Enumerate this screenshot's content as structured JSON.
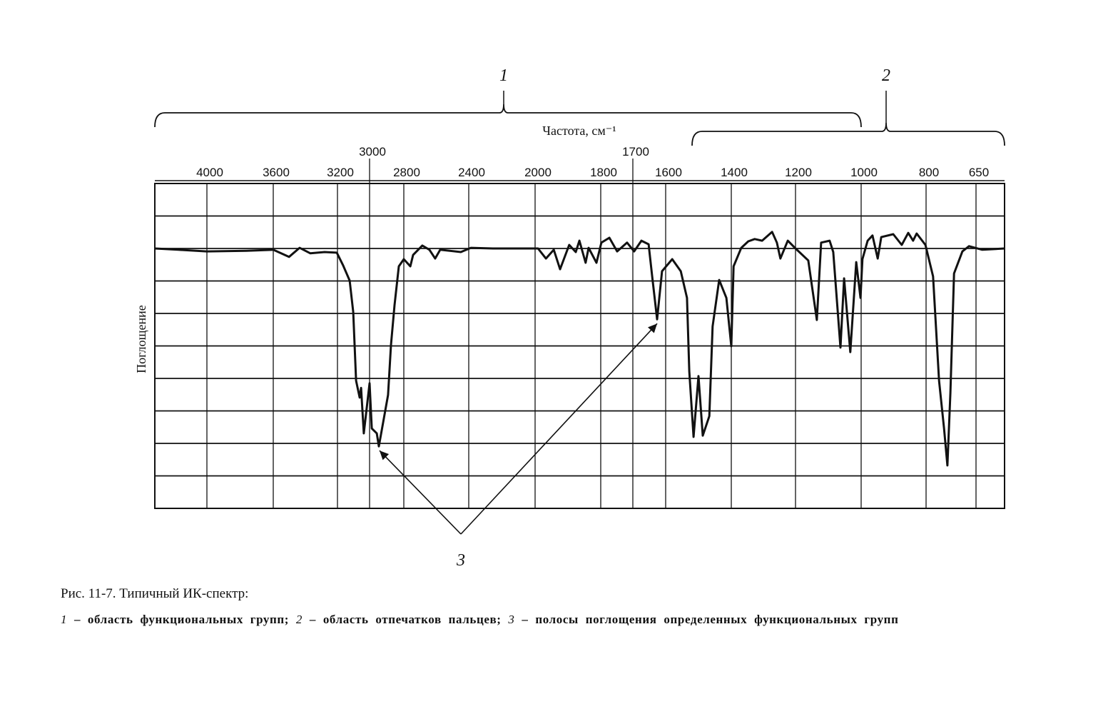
{
  "chart_data": {
    "type": "line",
    "title": "Рис. 11-7. Типичный ИК-спектр:",
    "xlabel": "Частота, см⁻¹",
    "ylabel": "Поглощение",
    "x_ticks": [
      4000,
      3600,
      3200,
      3000,
      2800,
      2400,
      2000,
      1800,
      1700,
      1600,
      1400,
      1200,
      1000,
      800,
      650
    ],
    "x_ticks_raised": [
      3000,
      1700
    ],
    "xlim": [
      4314,
      564
    ],
    "ylim": [
      0,
      100
    ],
    "y_gridlines": 10,
    "grid": true,
    "y_units": "relative transmittance (absorption downward), unlabeled axis",
    "series": [
      {
        "name": "spectrum",
        "points": [
          [
            4314,
            80
          ],
          [
            4172,
            79.6
          ],
          [
            4000,
            79.1
          ],
          [
            3763,
            79.3
          ],
          [
            3600,
            79.6
          ],
          [
            3502,
            77.4
          ],
          [
            3436,
            80.2
          ],
          [
            3369,
            78.5
          ],
          [
            3280,
            78.9
          ],
          [
            3204,
            78.7
          ],
          [
            3164,
            74.7
          ],
          [
            3124,
            70.1
          ],
          [
            3102,
            60.4
          ],
          [
            3084,
            39.3
          ],
          [
            3062,
            34.1
          ],
          [
            3053,
            37.1
          ],
          [
            3036,
            23.1
          ],
          [
            3000,
            38.5
          ],
          [
            2987,
            24.6
          ],
          [
            2958,
            23.1
          ],
          [
            2946,
            19.1
          ],
          [
            2912,
            29
          ],
          [
            2892,
            34.9
          ],
          [
            2875,
            50.3
          ],
          [
            2854,
            62.6
          ],
          [
            2829,
            74.5
          ],
          [
            2800,
            76.7
          ],
          [
            2760,
            74.5
          ],
          [
            2743,
            78
          ],
          [
            2686,
            80.9
          ],
          [
            2642,
            79.6
          ],
          [
            2607,
            76.9
          ],
          [
            2576,
            79.6
          ],
          [
            2449,
            78.9
          ],
          [
            2387,
            80.2
          ],
          [
            2254,
            80
          ],
          [
            1991,
            80
          ],
          [
            1967,
            76.9
          ],
          [
            1943,
            79.6
          ],
          [
            1924,
            73.6
          ],
          [
            1896,
            81.1
          ],
          [
            1876,
            78.9
          ],
          [
            1865,
            82.4
          ],
          [
            1846,
            75.6
          ],
          [
            1837,
            80.2
          ],
          [
            1813,
            75.6
          ],
          [
            1798,
            81.8
          ],
          [
            1773,
            83.3
          ],
          [
            1749,
            79.1
          ],
          [
            1718,
            81.8
          ],
          [
            1696,
            79.1
          ],
          [
            1674,
            82.4
          ],
          [
            1652,
            81.3
          ],
          [
            1641,
            71.4
          ],
          [
            1626,
            58.2
          ],
          [
            1611,
            73
          ],
          [
            1580,
            76.7
          ],
          [
            1554,
            73
          ],
          [
            1535,
            64.8
          ],
          [
            1528,
            42.2
          ],
          [
            1515,
            22
          ],
          [
            1500,
            40.7
          ],
          [
            1487,
            22.4
          ],
          [
            1467,
            28.4
          ],
          [
            1457,
            56
          ],
          [
            1437,
            70.3
          ],
          [
            1415,
            64.8
          ],
          [
            1400,
            49.9
          ],
          [
            1393,
            74.5
          ],
          [
            1369,
            80.2
          ],
          [
            1347,
            82.2
          ],
          [
            1327,
            82.9
          ],
          [
            1304,
            82.4
          ],
          [
            1273,
            85.1
          ],
          [
            1258,
            81.8
          ],
          [
            1247,
            76.9
          ],
          [
            1224,
            82.4
          ],
          [
            1202,
            80.2
          ],
          [
            1161,
            76.3
          ],
          [
            1135,
            58
          ],
          [
            1122,
            81.8
          ],
          [
            1096,
            82.4
          ],
          [
            1085,
            78.9
          ],
          [
            1063,
            49.5
          ],
          [
            1052,
            70.8
          ],
          [
            1033,
            48.1
          ],
          [
            1015,
            75.8
          ],
          [
            1002,
            64.8
          ],
          [
            996,
            76.7
          ],
          [
            980,
            82.4
          ],
          [
            965,
            84
          ],
          [
            949,
            76.9
          ],
          [
            938,
            83.5
          ],
          [
            901,
            84.4
          ],
          [
            875,
            81.1
          ],
          [
            855,
            84.8
          ],
          [
            840,
            82.4
          ],
          [
            829,
            84.6
          ],
          [
            802,
            81.1
          ],
          [
            779,
            71.4
          ],
          [
            761,
            39.3
          ],
          [
            746,
            24.6
          ],
          [
            736,
            13.2
          ],
          [
            727,
            35.6
          ],
          [
            716,
            72.3
          ],
          [
            691,
            79.1
          ],
          [
            671,
            80.7
          ],
          [
            631,
            79.6
          ],
          [
            564,
            80
          ]
        ]
      }
    ],
    "regions": [
      {
        "label": "1",
        "from": 4314,
        "to": 1000
      },
      {
        "label": "2",
        "from": 1540,
        "to": 564
      }
    ],
    "arrow_label": "3",
    "arrow_targets": [
      [
        2946,
        19.1
      ],
      [
        1626,
        58.2
      ]
    ]
  },
  "caption": {
    "title": "Рис. 11-7. Типичный ИК-спектр:",
    "items": [
      {
        "num": "1",
        "text": " – область функциональных групп; "
      },
      {
        "num": "2",
        "text": " – область отпечатков пальцев; "
      },
      {
        "num": "3",
        "text": " – полосы поглощения определенных функциональных групп"
      }
    ]
  }
}
